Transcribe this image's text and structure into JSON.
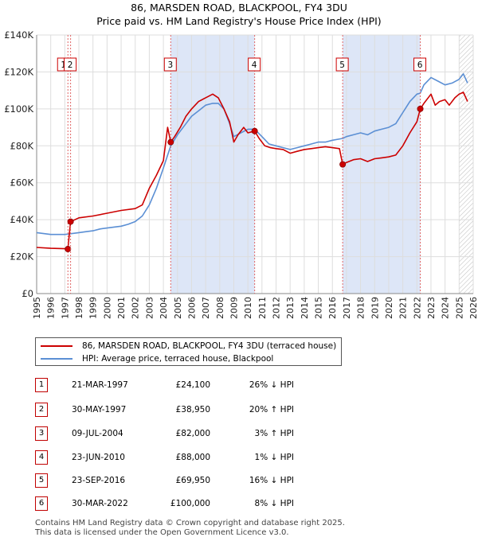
{
  "header": {
    "title": "86, MARSDEN ROAD, BLACKPOOL, FY4 3DU",
    "subtitle": "Price paid vs. HM Land Registry's House Price Index (HPI)"
  },
  "colors": {
    "property_line": "#cc0000",
    "hpi_line": "#5b8fd4",
    "shade": "#dde6f7",
    "marker_border": "#cc0000",
    "grid": "#dddddd"
  },
  "legend": {
    "property": "86, MARSDEN ROAD, BLACKPOOL, FY4 3DU (terraced house)",
    "hpi": "HPI: Average price, terraced house, Blackpool"
  },
  "sales": [
    {
      "num": "1",
      "date": "21-MAR-1997",
      "price": "£24,100",
      "hpi": "26% ↓ HPI"
    },
    {
      "num": "2",
      "date": "30-MAY-1997",
      "price": "£38,950",
      "hpi": "20% ↑ HPI"
    },
    {
      "num": "3",
      "date": "09-JUL-2004",
      "price": "£82,000",
      "hpi": "3% ↑ HPI"
    },
    {
      "num": "4",
      "date": "23-JUN-2010",
      "price": "£88,000",
      "hpi": "1% ↓ HPI"
    },
    {
      "num": "5",
      "date": "23-SEP-2016",
      "price": "£69,950",
      "hpi": "16% ↓ HPI"
    },
    {
      "num": "6",
      "date": "30-MAR-2022",
      "price": "£100,000",
      "hpi": "8% ↓ HPI"
    }
  ],
  "footer": {
    "line1": "Contains HM Land Registry data © Crown copyright and database right 2025.",
    "line2": "This data is licensed under the Open Government Licence v3.0."
  },
  "chart_data": {
    "type": "line",
    "title": "86, MARSDEN ROAD, BLACKPOOL, FY4 3DU",
    "subtitle": "Price paid vs. HM Land Registry's House Price Index (HPI)",
    "xlabel": "",
    "ylabel": "",
    "xlim": [
      1995,
      2026
    ],
    "ylim": [
      0,
      140000
    ],
    "x_ticks": [
      1995,
      1996,
      1997,
      1998,
      1999,
      2000,
      2001,
      2002,
      2003,
      2004,
      2005,
      2006,
      2007,
      2008,
      2009,
      2010,
      2011,
      2012,
      2013,
      2014,
      2015,
      2016,
      2017,
      2018,
      2019,
      2020,
      2021,
      2022,
      2023,
      2024,
      2025,
      2026
    ],
    "y_ticks": [
      {
        "value": 0,
        "label": "£0"
      },
      {
        "value": 20000,
        "label": "£20K"
      },
      {
        "value": 40000,
        "label": "£40K"
      },
      {
        "value": 60000,
        "label": "£60K"
      },
      {
        "value": 80000,
        "label": "£80K"
      },
      {
        "value": 100000,
        "label": "£100K"
      },
      {
        "value": 120000,
        "label": "£120K"
      },
      {
        "value": 140000,
        "label": "£140K"
      }
    ],
    "shaded_periods": [
      [
        2004.52,
        2010.48
      ],
      [
        2016.73,
        2022.24
      ]
    ],
    "hatched_from": 2025.0,
    "series": [
      {
        "name": "86, MARSDEN ROAD, BLACKPOOL, FY4 3DU (terraced house)",
        "color": "#cc0000",
        "x": [
          1995.0,
          1996.0,
          1997.0,
          1997.22,
          1997.41,
          1998.0,
          1999.0,
          2000.0,
          2001.0,
          2002.0,
          2002.5,
          2003.0,
          2003.5,
          2004.0,
          2004.3,
          2004.52,
          2004.8,
          2005.2,
          2005.6,
          2006.0,
          2006.5,
          2007.0,
          2007.5,
          2007.9,
          2008.3,
          2008.7,
          2009.0,
          2009.3,
          2009.7,
          2010.0,
          2010.48,
          2010.8,
          2011.2,
          2011.6,
          2012.0,
          2012.5,
          2013.0,
          2013.5,
          2014.0,
          2014.5,
          2015.0,
          2015.5,
          2016.0,
          2016.5,
          2016.73,
          2017.0,
          2017.5,
          2018.0,
          2018.5,
          2019.0,
          2019.5,
          2020.0,
          2020.5,
          2021.0,
          2021.5,
          2022.0,
          2022.24,
          2022.5,
          2023.0,
          2023.3,
          2023.6,
          2024.0,
          2024.3,
          2024.7,
          2025.0,
          2025.3,
          2025.6
        ],
        "y": [
          25000,
          24500,
          24300,
          24100,
          38950,
          41000,
          42000,
          43500,
          45000,
          46000,
          48000,
          57000,
          64000,
          72000,
          90000,
          82000,
          85000,
          90000,
          96000,
          100000,
          104000,
          106000,
          108000,
          106000,
          100000,
          93000,
          82000,
          86000,
          90000,
          87000,
          88000,
          84000,
          80000,
          79000,
          78500,
          78000,
          76000,
          77000,
          78000,
          78500,
          79000,
          79500,
          79000,
          78500,
          69950,
          71000,
          72500,
          73000,
          71500,
          73000,
          73500,
          74000,
          75000,
          80000,
          87000,
          93000,
          100000,
          103000,
          108000,
          102000,
          104000,
          105000,
          102000,
          106000,
          108000,
          109000,
          104000
        ]
      },
      {
        "name": "HPI: Average price, terraced house, Blackpool",
        "color": "#5b8fd4",
        "x": [
          1995.0,
          1995.5,
          1996.0,
          1996.5,
          1997.0,
          1997.5,
          1998.0,
          1998.5,
          1999.0,
          1999.5,
          2000.0,
          2000.5,
          2001.0,
          2001.5,
          2002.0,
          2002.5,
          2003.0,
          2003.5,
          2004.0,
          2004.52,
          2005.0,
          2005.5,
          2006.0,
          2006.5,
          2007.0,
          2007.5,
          2007.9,
          2008.3,
          2008.7,
          2009.0,
          2009.5,
          2010.0,
          2010.48,
          2011.0,
          2011.5,
          2012.0,
          2012.5,
          2013.0,
          2013.5,
          2014.0,
          2014.5,
          2015.0,
          2015.5,
          2016.0,
          2016.73,
          2017.0,
          2017.5,
          2018.0,
          2018.5,
          2019.0,
          2019.5,
          2020.0,
          2020.5,
          2021.0,
          2021.5,
          2022.0,
          2022.24,
          2022.5,
          2023.0,
          2023.5,
          2024.0,
          2024.5,
          2025.0,
          2025.3,
          2025.6
        ],
        "y": [
          33000,
          32500,
          32000,
          32000,
          32000,
          32500,
          33000,
          33500,
          34000,
          35000,
          35500,
          36000,
          36500,
          37500,
          39000,
          42000,
          48000,
          57000,
          68000,
          80000,
          86000,
          91000,
          96000,
          99000,
          102000,
          103000,
          103000,
          100000,
          92000,
          85000,
          87000,
          89000,
          89000,
          85000,
          81000,
          80000,
          79000,
          78000,
          79000,
          80000,
          81000,
          82000,
          82000,
          83000,
          84000,
          85000,
          86000,
          87000,
          86000,
          88000,
          89000,
          90000,
          92000,
          98000,
          104000,
          108000,
          108500,
          113000,
          117000,
          115000,
          113000,
          114000,
          116000,
          119000,
          114000
        ]
      }
    ],
    "sales": [
      {
        "label": "1",
        "x": 1997.22,
        "y": 24100
      },
      {
        "label": "2",
        "x": 1997.41,
        "y": 38950
      },
      {
        "label": "3",
        "x": 2004.52,
        "y": 82000
      },
      {
        "label": "4",
        "x": 2010.48,
        "y": 88000
      },
      {
        "label": "5",
        "x": 2016.73,
        "y": 69950
      },
      {
        "label": "6",
        "x": 2022.24,
        "y": 100000
      }
    ]
  }
}
